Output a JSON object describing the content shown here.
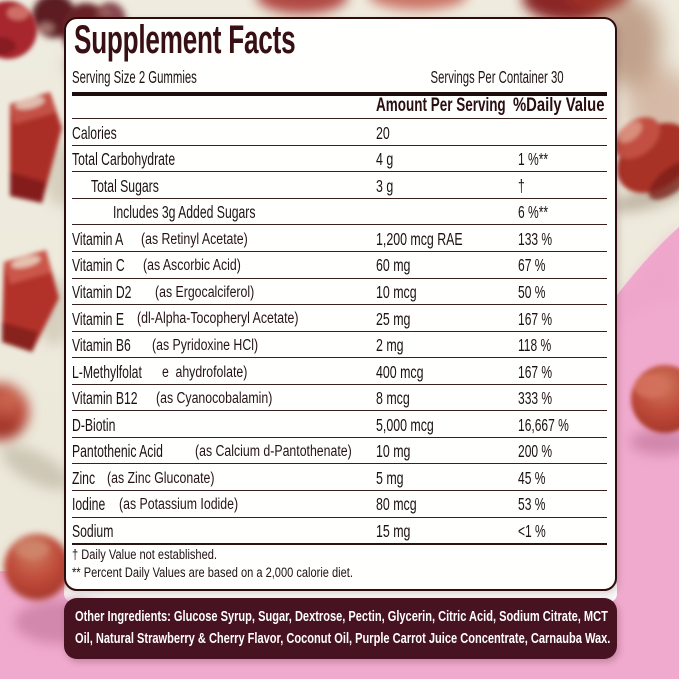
{
  "label": {
    "title": "Supplement Facts",
    "serving_size": "Serving Size 2 Gummies",
    "servings_per_container": "Servings Per Container 30",
    "columns": {
      "amount_per_serving": "Amount Per Serving",
      "percent_daily_value": "%Daily Value"
    },
    "rows": [
      {
        "name": "Calories",
        "detail": "",
        "amount": "20",
        "dv": ""
      },
      {
        "name": "Total Carbohydrate",
        "detail": "",
        "amount": "4 g",
        "dv": "1 %**"
      },
      {
        "name": "Total Sugars",
        "detail": "",
        "amount": "3 g",
        "dv": "†"
      },
      {
        "name": "Includes 3g Added Sugars",
        "detail": "",
        "amount": "",
        "dv": "6 %**"
      },
      {
        "name": "Vitamin A",
        "detail": "(as Retinyl Acetate)",
        "amount": "1,200 mcg RAE",
        "dv": "133 %"
      },
      {
        "name": "Vitamin C",
        "detail": "(as Ascorbic Acid)",
        "amount": "60 mg",
        "dv": "67 %"
      },
      {
        "name": "Vitamin D2",
        "detail": "(as Ergocalciferol)",
        "amount": "10 mcg",
        "dv": "50 %"
      },
      {
        "name": "Vitamin E",
        "detail": "(dl-Alpha-Tocopheryl Acetate)",
        "amount": "25 mg",
        "dv": "167 %"
      },
      {
        "name": "Vitamin B6",
        "detail": "(as Pyridoxine HCl)",
        "amount": "2 mg",
        "dv": "118 %"
      },
      {
        "name": "L-Methylfolat",
        "detail": "e ahydrofolate)",
        "amount": "400 mcg",
        "dv": "167 %"
      },
      {
        "name": "Vitamin B12",
        "detail": "(as Cyanocobalamin)",
        "amount": "8 mcg",
        "dv": "333 %"
      },
      {
        "name": "D-Biotin",
        "detail": "",
        "amount": "5,000 mcg",
        "dv": "16,667 %"
      },
      {
        "name": "Pantothenic Acid",
        "detail": "(as Calcium d-Pantothenate)",
        "amount": "10 mg",
        "dv": "200 %"
      },
      {
        "name": "Zinc",
        "detail": "(as Zinc Gluconate)",
        "amount": "5 mg",
        "dv": "45 %"
      },
      {
        "name": "Iodine",
        "detail": "(as Potassium Iodide)",
        "amount": "80 mcg",
        "dv": "53 %"
      },
      {
        "name": "Sodium",
        "detail": "",
        "amount": "15 mg",
        "dv": "<1 %"
      }
    ],
    "footnotes": [
      "† Daily Value not established.",
      "** Percent Daily Values are based on a 2,000 calorie diet."
    ],
    "other_ingredients": {
      "line1": "Other Ingredients: Glucose Syrup, Sugar, Dextrose, Pectin, Glycerin, Citric Acid, Sodium Citrate, MCT",
      "line2": "Oil, Natural Strawberry & Cherry Flavor, Coconut Oil, Purple Carrot Juice Concentrate, Carnauba Wax."
    }
  },
  "colors": {
    "panel_background": "#ffffff",
    "panel_border": "#2d0c0e",
    "title_text": "#380f12",
    "body_text": "#1b1112",
    "ingredients_box_background": "#471320",
    "ingredients_box_text": "#ffffff",
    "photo_background_cream": "#efecdf",
    "photo_background_pink": "#f0aacd",
    "gummy_red": "#b23329"
  }
}
